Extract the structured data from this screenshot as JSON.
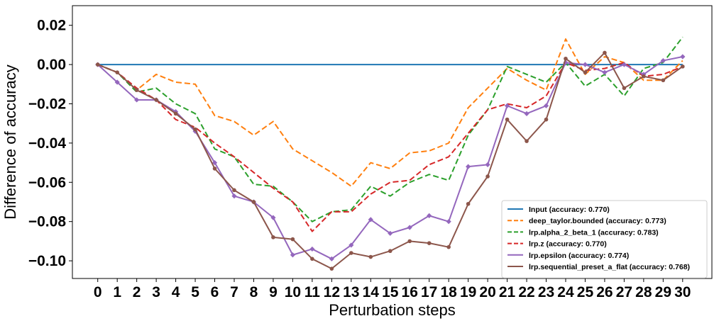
{
  "chart_data": {
    "type": "line",
    "xlabel": "Perturbation steps",
    "ylabel": "Difference of accuracy",
    "xlim": [
      -1.3,
      31.5
    ],
    "ylim": [
      -0.109,
      0.03
    ],
    "x_ticks": [
      0,
      1,
      2,
      3,
      4,
      5,
      6,
      7,
      8,
      9,
      10,
      11,
      12,
      13,
      14,
      15,
      16,
      17,
      18,
      19,
      20,
      21,
      22,
      23,
      24,
      25,
      26,
      27,
      28,
      29,
      30
    ],
    "y_ticks": [
      0.02,
      0.0,
      -0.02,
      -0.04,
      -0.06,
      -0.08,
      -0.1
    ],
    "y_tick_labels": [
      "0.02",
      "0.00",
      "−0.02",
      "−0.04",
      "−0.06",
      "−0.08",
      "−0.10"
    ],
    "legend_position": "lower-right",
    "grid": false,
    "x": [
      0,
      1,
      2,
      3,
      4,
      5,
      6,
      7,
      8,
      9,
      10,
      11,
      12,
      13,
      14,
      15,
      16,
      17,
      18,
      19,
      20,
      21,
      22,
      23,
      24,
      25,
      26,
      27,
      28,
      29,
      30
    ],
    "series": [
      {
        "name": "Input (accuracy: 0.770)",
        "color": "#1f77b4",
        "style": "solid",
        "marker": "none",
        "values": [
          0,
          0,
          0,
          0,
          0,
          0,
          0,
          0,
          0,
          0,
          0,
          0,
          0,
          0,
          0,
          0,
          0,
          0,
          0,
          0,
          0,
          0,
          0,
          0,
          0,
          0,
          0,
          0,
          0,
          0,
          0
        ]
      },
      {
        "name": "deep_taylor.bounded (accuracy: 0.773)",
        "color": "#ff7f0e",
        "style": "dashed",
        "marker": "none",
        "values": [
          0,
          -0.004,
          -0.013,
          -0.005,
          -0.009,
          -0.01,
          -0.026,
          -0.029,
          -0.036,
          -0.029,
          -0.043,
          -0.049,
          -0.055,
          -0.062,
          -0.05,
          -0.053,
          -0.045,
          -0.044,
          -0.04,
          -0.022,
          -0.012,
          -0.002,
          -0.008,
          -0.013,
          0.013,
          -0.005,
          0.004,
          0.001,
          -0.008,
          -0.008,
          0.002
        ]
      },
      {
        "name": "lrp.alpha_2_beta_1 (accuracy: 0.783)",
        "color": "#2ca02c",
        "style": "dashed",
        "marker": "none",
        "values": [
          0,
          -0.004,
          -0.014,
          -0.012,
          -0.02,
          -0.025,
          -0.043,
          -0.047,
          -0.061,
          -0.062,
          -0.07,
          -0.08,
          -0.075,
          -0.074,
          -0.062,
          -0.067,
          -0.06,
          -0.056,
          -0.059,
          -0.036,
          -0.023,
          -0.001,
          -0.005,
          -0.009,
          0.001,
          -0.011,
          -0.005,
          -0.016,
          -0.002,
          0.001,
          0.014
        ]
      },
      {
        "name": "lrp.z (accuracy: 0.770)",
        "color": "#d62728",
        "style": "dashed",
        "marker": "none",
        "values": [
          0,
          -0.004,
          -0.012,
          -0.018,
          -0.028,
          -0.032,
          -0.04,
          -0.047,
          -0.055,
          -0.063,
          -0.07,
          -0.085,
          -0.075,
          -0.075,
          -0.066,
          -0.06,
          -0.059,
          -0.051,
          -0.047,
          -0.035,
          -0.023,
          -0.02,
          -0.022,
          -0.016,
          0.001,
          -0.003,
          -0.002,
          0.001,
          -0.006,
          -0.005,
          -0.001
        ]
      },
      {
        "name": "lrp.epsilon (accuracy: 0.774)",
        "color": "#9467bd",
        "style": "solid",
        "marker": "diamond",
        "values": [
          0,
          -0.009,
          -0.018,
          -0.018,
          -0.024,
          -0.034,
          -0.05,
          -0.067,
          -0.07,
          -0.078,
          -0.097,
          -0.094,
          -0.099,
          -0.092,
          -0.079,
          -0.086,
          -0.083,
          -0.077,
          -0.08,
          -0.052,
          -0.051,
          -0.021,
          -0.025,
          -0.021,
          0.001,
          0.0,
          -0.004,
          0.0,
          -0.005,
          0.002,
          0.004
        ]
      },
      {
        "name": "lrp.sequential_preset_a_flat (accuracy: 0.768)",
        "color": "#8c564b",
        "style": "solid",
        "marker": "circle",
        "values": [
          0,
          -0.004,
          -0.013,
          -0.018,
          -0.025,
          -0.033,
          -0.053,
          -0.064,
          -0.07,
          -0.088,
          -0.089,
          -0.099,
          -0.104,
          -0.096,
          -0.098,
          -0.095,
          -0.09,
          -0.091,
          -0.093,
          -0.071,
          -0.057,
          -0.028,
          -0.039,
          -0.028,
          0.003,
          -0.004,
          0.006,
          -0.012,
          -0.006,
          -0.008,
          -0.001
        ]
      }
    ]
  }
}
